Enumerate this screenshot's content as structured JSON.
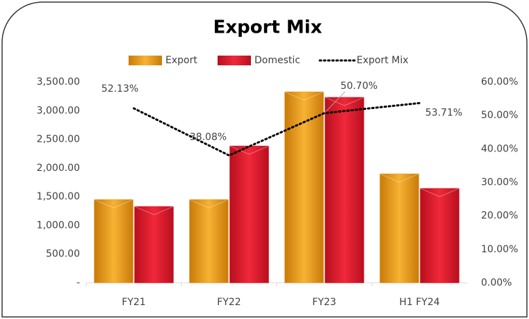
{
  "chart_data": {
    "type": "bar",
    "title": "Export Mix",
    "categories": [
      "FY21",
      "FY22",
      "FY23",
      "H1 FY24"
    ],
    "series": [
      {
        "name": "Export",
        "color": "#f0a020",
        "values": [
          1453,
          1453,
          3330,
          1901
        ]
      },
      {
        "name": "Domestic",
        "color": "#e8192c",
        "values": [
          1332,
          2386,
          3234,
          1647
        ]
      },
      {
        "name": "Export Mix",
        "type": "line",
        "axis": "y2",
        "color": "#000000",
        "values": [
          52.13,
          38.08,
          50.7,
          53.71
        ],
        "value_labels": [
          "52.13%",
          "38.08%",
          "50.70%",
          "53.71%"
        ]
      }
    ],
    "ylim": [
      0,
      3500
    ],
    "yticks": [
      {
        "value": 0,
        "label": "-"
      },
      {
        "value": 500,
        "label": "500.00"
      },
      {
        "value": 1000,
        "label": "1,000.00"
      },
      {
        "value": 1500,
        "label": "1,500.00"
      },
      {
        "value": 2000,
        "label": "2,000.00"
      },
      {
        "value": 2500,
        "label": "2,500.00"
      },
      {
        "value": 3000,
        "label": "3,000.00"
      },
      {
        "value": 3500,
        "label": "3,500.00"
      }
    ],
    "y2lim": [
      0,
      60
    ],
    "y2ticks": [
      {
        "value": 0,
        "label": "0.00%"
      },
      {
        "value": 10,
        "label": "10.00%"
      },
      {
        "value": 20,
        "label": "20.00%"
      },
      {
        "value": 30,
        "label": "30.00%"
      },
      {
        "value": 40,
        "label": "40.00%"
      },
      {
        "value": 50,
        "label": "50.00%"
      },
      {
        "value": 60,
        "label": "60.00%"
      }
    ],
    "legend": "top"
  }
}
